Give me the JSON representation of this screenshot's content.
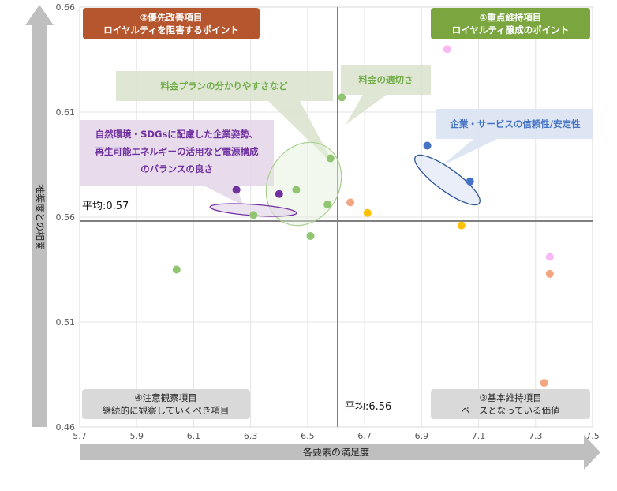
{
  "chart_data": {
    "type": "scatter",
    "xlabel": "各要素の満足度",
    "ylabel": "推奨度との相関",
    "xlim": [
      5.7,
      7.5
    ],
    "ylim": [
      0.46,
      0.66
    ],
    "x_ticks": [
      "5.7",
      "5.9",
      "6.1",
      "6.3",
      "6.5",
      "6.7",
      "6.9",
      "7.1",
      "7.3",
      "7.5"
    ],
    "y_ticks": [
      "0.46",
      "0.51",
      "0.56",
      "0.61",
      "0.66"
    ],
    "grid": true,
    "avg_x": 6.56,
    "avg_y": 0.57,
    "avg_x_label": "平均:6.56",
    "avg_y_label": "平均:0.57",
    "quadrants": {
      "q1": {
        "line1": "①重点維持項目",
        "line2": "ロイヤルティ醸成のポイント",
        "color": "#7aa53f"
      },
      "q2": {
        "line1": "②優先改善項目",
        "line2": "ロイヤルティを阻害するポイント",
        "color": "#b5562f"
      },
      "q3": {
        "line1": "③基本維持項目",
        "line2": "ベースとなっている価値",
        "color": "#d9d9d9"
      },
      "q4": {
        "line1": "④注意観察項目",
        "line2": "継続的に観察していくべき項目",
        "color": "#d9d9d9"
      }
    },
    "annotations": {
      "plan": "料金プランの分かりやすさなど",
      "price": "料金の適切さ",
      "trust": "企業・サービスの信頼性/安定性",
      "env1": "自然環境・SDGsに配慮した企業姿勢、",
      "env2": "再生可能エネルギーの活用など電源構成",
      "env3": "のバランスの良さ"
    },
    "points": [
      {
        "x": 6.62,
        "y": 0.617,
        "color": "#92c572"
      },
      {
        "x": 6.58,
        "y": 0.588,
        "color": "#92c572"
      },
      {
        "x": 6.46,
        "y": 0.573,
        "color": "#92c572"
      },
      {
        "x": 6.57,
        "y": 0.566,
        "color": "#92c572"
      },
      {
        "x": 6.31,
        "y": 0.561,
        "color": "#92c572"
      },
      {
        "x": 6.51,
        "y": 0.551,
        "color": "#92c572"
      },
      {
        "x": 6.04,
        "y": 0.535,
        "color": "#92c572"
      },
      {
        "x": 6.25,
        "y": 0.573,
        "color": "#7030a0"
      },
      {
        "x": 6.4,
        "y": 0.571,
        "color": "#7030a0"
      },
      {
        "x": 6.92,
        "y": 0.594,
        "color": "#4472c4"
      },
      {
        "x": 7.07,
        "y": 0.577,
        "color": "#4472c4"
      },
      {
        "x": 6.65,
        "y": 0.567,
        "color": "#f4a582"
      },
      {
        "x": 6.71,
        "y": 0.562,
        "color": "#ffc000"
      },
      {
        "x": 7.04,
        "y": 0.556,
        "color": "#ffc000"
      },
      {
        "x": 6.99,
        "y": 0.64,
        "color": "#f8b9f5"
      },
      {
        "x": 7.35,
        "y": 0.541,
        "color": "#f8b9f5"
      },
      {
        "x": 7.35,
        "y": 0.533,
        "color": "#f4a582"
      },
      {
        "x": 7.33,
        "y": 0.481,
        "color": "#f4a582"
      }
    ]
  }
}
